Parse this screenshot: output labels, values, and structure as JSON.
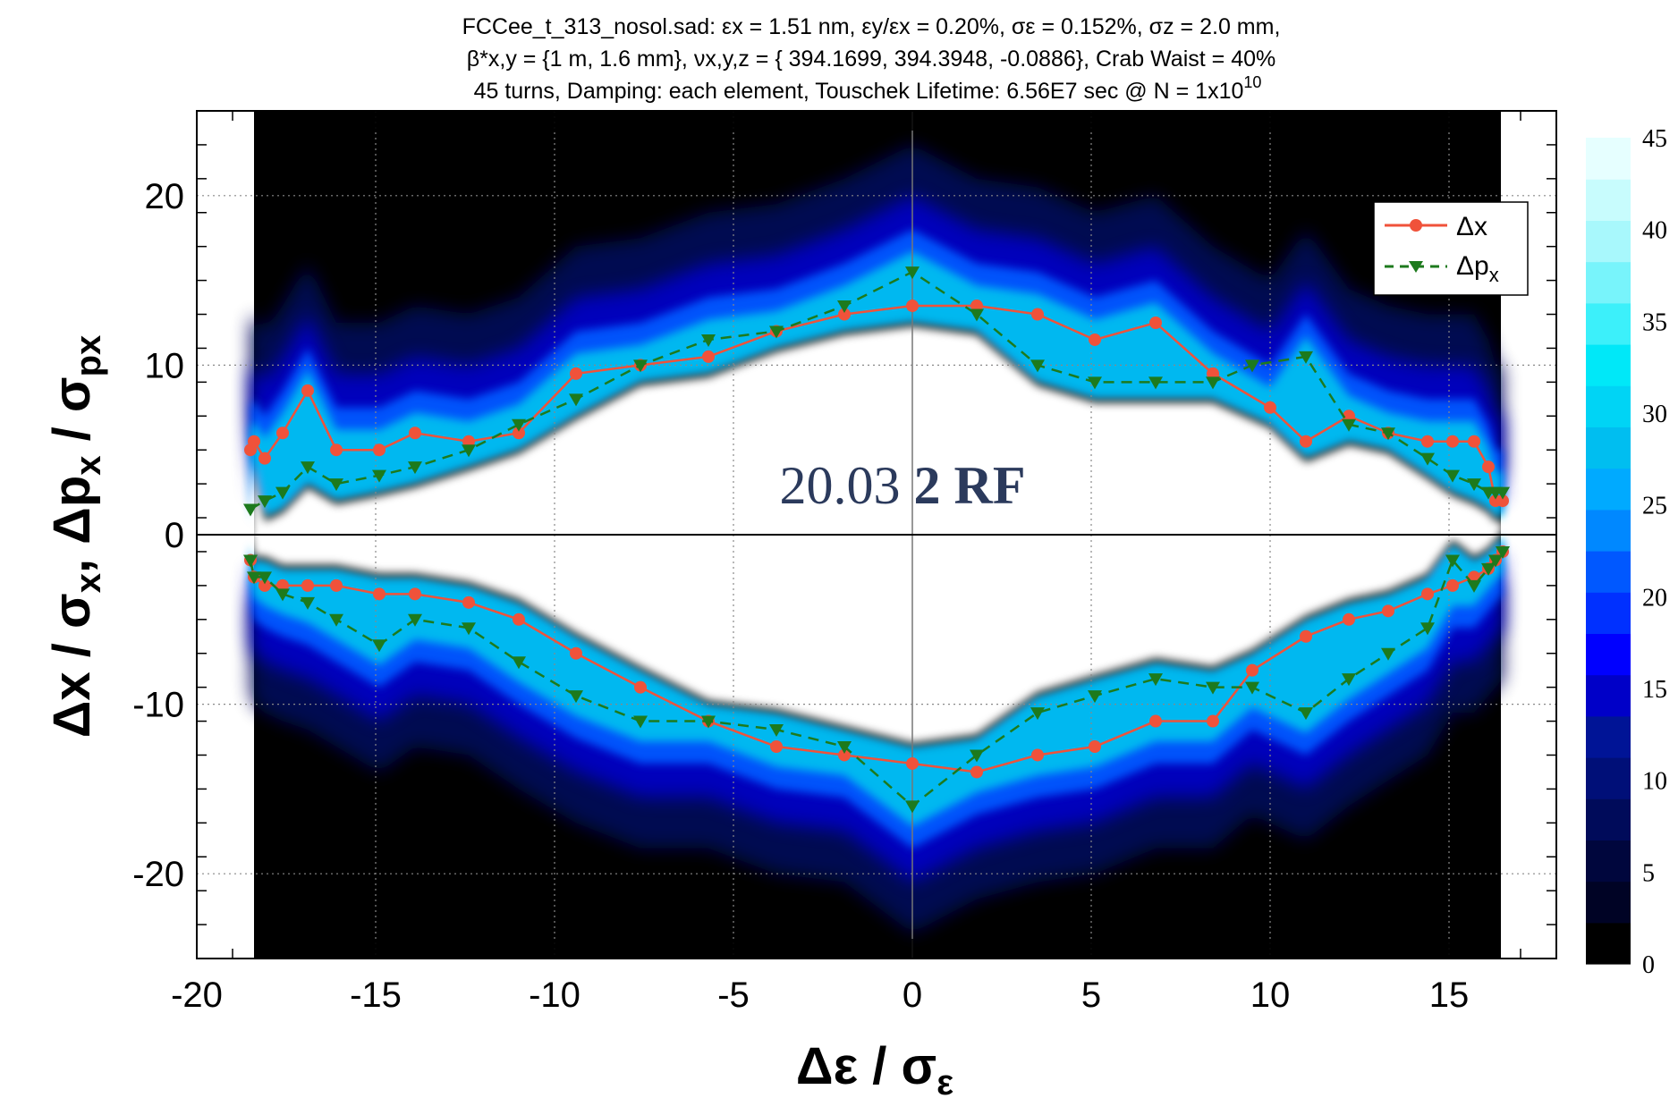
{
  "chart_data": {
    "type": "line",
    "title_lines": [
      "FCCee_t_313_nosol.sad: εx = 1.51 nm, εy/εx = 0.20%, σε = 0.152%, σz = 2.0 mm,",
      "β*x,y = {1 m, 1.6 mm}, νx,y,z = { 394.1699, 394.3948,  -0.0886}, Crab Waist = 40%",
      "45 turns, Damping: each element, Touschek Lifetime: 6.56E7 sec @ N = 1x10"
    ],
    "title_superscript": "10",
    "xlabel": "Δε / σε",
    "ylabel": "Δx / σx, Δpx / σpx",
    "xlim": [
      -20,
      18
    ],
    "ylim": [
      -25,
      25
    ],
    "x_ticks": [
      -20,
      -15,
      -10,
      -5,
      0,
      5,
      10,
      15
    ],
    "y_ticks": [
      -20,
      -10,
      0,
      10,
      20
    ],
    "grid": true,
    "legend_position": "top-right",
    "annotation": {
      "text_regular": "20.03",
      "text_bold": "2 RF"
    },
    "colorbar": {
      "range": [
        0,
        45
      ],
      "ticks": [
        0,
        5,
        10,
        15,
        20,
        25,
        30,
        35,
        40,
        45
      ],
      "colors": [
        "#000000",
        "#000325",
        "#00063d",
        "#000b5a",
        "#000f78",
        "#001496",
        "#0000c8",
        "#0000ff",
        "#0030ff",
        "#0058ff",
        "#0088ff",
        "#00aaff",
        "#00bef0",
        "#00d4f5",
        "#00e8f8",
        "#3cf0fa",
        "#78f4fb",
        "#a8f8fc",
        "#c8fcfd",
        "#e6ffff"
      ]
    },
    "series": [
      {
        "name": "Δx",
        "color": "#f0523a",
        "marker": "circle",
        "dash": "solid",
        "segments": [
          {
            "x": [
              -18.5,
              -18.4,
              -18.1,
              -17.6,
              -16.9,
              -16.1,
              -14.9,
              -13.9,
              -12.4,
              -11.0,
              -9.4,
              -7.6,
              -5.7,
              -3.8,
              -1.9,
              0,
              1.8,
              3.5,
              5.1,
              6.8,
              8.4,
              10.0,
              11.0,
              12.2,
              13.3,
              14.4,
              15.1,
              15.7,
              16.1,
              16.3,
              16.5
            ],
            "y": [
              5.0,
              5.5,
              4.5,
              6.0,
              8.5,
              5.0,
              5.0,
              6.0,
              5.5,
              6.0,
              9.5,
              10.0,
              10.5,
              12.0,
              13.0,
              13.5,
              13.5,
              13.0,
              11.5,
              12.5,
              9.5,
              7.5,
              5.5,
              7.0,
              6.0,
              5.5,
              5.5,
              5.5,
              4.0,
              2.0,
              2.0
            ]
          },
          {
            "x": [
              -18.5,
              -18.4,
              -18.1,
              -17.6,
              -16.9,
              -16.1,
              -14.9,
              -13.9,
              -12.4,
              -11.0,
              -9.4,
              -7.6,
              -5.7,
              -3.8,
              -1.9,
              0,
              1.8,
              3.5,
              5.1,
              6.8,
              8.4,
              9.5,
              11.0,
              12.2,
              13.3,
              14.4,
              15.1,
              15.7,
              16.1,
              16.3,
              16.5
            ],
            "y": [
              -1.5,
              -2.5,
              -3.0,
              -3.0,
              -3.0,
              -3.0,
              -3.5,
              -3.5,
              -4.0,
              -5.0,
              -7.0,
              -9.0,
              -11.0,
              -12.5,
              -13.0,
              -13.5,
              -14.0,
              -13.0,
              -12.5,
              -11.0,
              -11.0,
              -8.0,
              -6.0,
              -5.0,
              -4.5,
              -3.5,
              -3.0,
              -2.5,
              -2.0,
              -1.5,
              -1.0
            ]
          }
        ]
      },
      {
        "name": "Δpx",
        "color": "#1d7a1d",
        "marker": "triangle-down",
        "dash": "dashed",
        "segments": [
          {
            "x": [
              -18.5,
              -18.1,
              -17.6,
              -16.9,
              -16.1,
              -14.9,
              -13.9,
              -12.4,
              -11.0,
              -9.4,
              -7.6,
              -5.7,
              -3.8,
              -1.9,
              0,
              1.8,
              3.5,
              5.1,
              6.8,
              8.4,
              9.5,
              11.0,
              12.2,
              13.3,
              14.4,
              15.1,
              15.7,
              16.1,
              16.3,
              16.5
            ],
            "y": [
              1.5,
              2.0,
              2.5,
              4.0,
              3.0,
              3.5,
              4.0,
              5.0,
              6.5,
              8.0,
              10.0,
              11.5,
              12.0,
              13.5,
              15.5,
              13.0,
              10.0,
              9.0,
              9.0,
              9.0,
              10.0,
              10.5,
              6.5,
              6.0,
              4.5,
              3.5,
              3.0,
              2.5,
              2.5,
              2.5
            ]
          },
          {
            "x": [
              -18.5,
              -18.4,
              -18.1,
              -17.6,
              -16.9,
              -16.1,
              -14.9,
              -13.9,
              -12.4,
              -11.0,
              -9.4,
              -7.6,
              -5.7,
              -3.8,
              -1.9,
              0,
              1.8,
              3.5,
              5.1,
              6.8,
              8.4,
              9.5,
              11.0,
              12.2,
              13.3,
              14.4,
              15.1,
              15.7,
              16.1,
              16.3,
              16.5
            ],
            "y": [
              -1.5,
              -2.5,
              -2.5,
              -3.5,
              -4.0,
              -5.0,
              -6.5,
              -5.0,
              -5.5,
              -7.5,
              -9.5,
              -11.0,
              -11.0,
              -11.5,
              -12.5,
              -16.0,
              -13.0,
              -10.5,
              -9.5,
              -8.5,
              -9.0,
              -9.0,
              -10.5,
              -8.5,
              -7.0,
              -5.5,
              -1.5,
              -3.0,
              -2.0,
              -1.5,
              -1.0
            ]
          }
        ]
      }
    ]
  }
}
